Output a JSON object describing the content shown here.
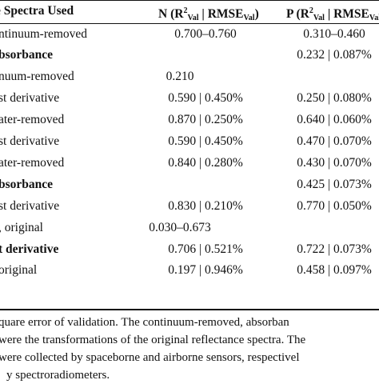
{
  "table": {
    "headers": {
      "spectra": "e Spectra Used",
      "n_prefix": "N (R",
      "n_sup": "2",
      "n_sub": "Val",
      "n_mid": " | RMSE",
      "n_sub2": "Val",
      "n_suffix": ")",
      "p_prefix": "P (R",
      "p_sup": "2",
      "p_sub": "Val",
      "p_mid": " | RMSE",
      "p_sub2": "Val"
    },
    "rows": [
      {
        "spectra": "ntinuum-removed",
        "bold": false,
        "n": "0.700–0.760",
        "p": "0.310–0.460"
      },
      {
        "spectra": "bsorbance",
        "bold": true,
        "n": "",
        "p": "0.232 | 0.087%"
      },
      {
        "spectra": "nuum-removed",
        "bold": false,
        "n": "0.210",
        "p": ""
      },
      {
        "spectra": "st derivative",
        "bold": false,
        "n": "0.590 | 0.450%",
        "p": "0.250 | 0.080%"
      },
      {
        "spectra": "ater-removed",
        "bold": false,
        "n": "0.870 | 0.250%",
        "p": "0.640 | 0.060%"
      },
      {
        "spectra": "st derivative",
        "bold": false,
        "n": "0.590 | 0.450%",
        "p": "0.470 | 0.070%"
      },
      {
        "spectra": "ater-removed",
        "bold": false,
        "n": "0.840 | 0.280%",
        "p": "0.430 | 0.070%"
      },
      {
        "spectra": "bsorbance",
        "bold": true,
        "n": "",
        "p": "0.425 | 0.073%"
      },
      {
        "spectra": "st derivative",
        "bold": false,
        "n": "0.830 | 0.210%",
        "p": "0.770 | 0.050%"
      },
      {
        "spectra": ", original",
        "bold": false,
        "n": "0.030–0.673",
        "p": ""
      },
      {
        "spectra": "t derivative",
        "bold": true,
        "n": "0.706 | 0.521%",
        "p": "0.722 | 0.073%"
      },
      {
        "spectra": "original",
        "bold": false,
        "n": "0.197 | 0.946%",
        "p": "0.458 | 0.097%"
      }
    ]
  },
  "footnote": {
    "line1": "quare error of validation. The continuum-removed, absorban",
    "line2": "were the transformations of the original reflectance spectra. The",
    "line3": "were collected by spaceborne and airborne sensors, respectivel",
    "line4": "y spectroradiometers."
  }
}
